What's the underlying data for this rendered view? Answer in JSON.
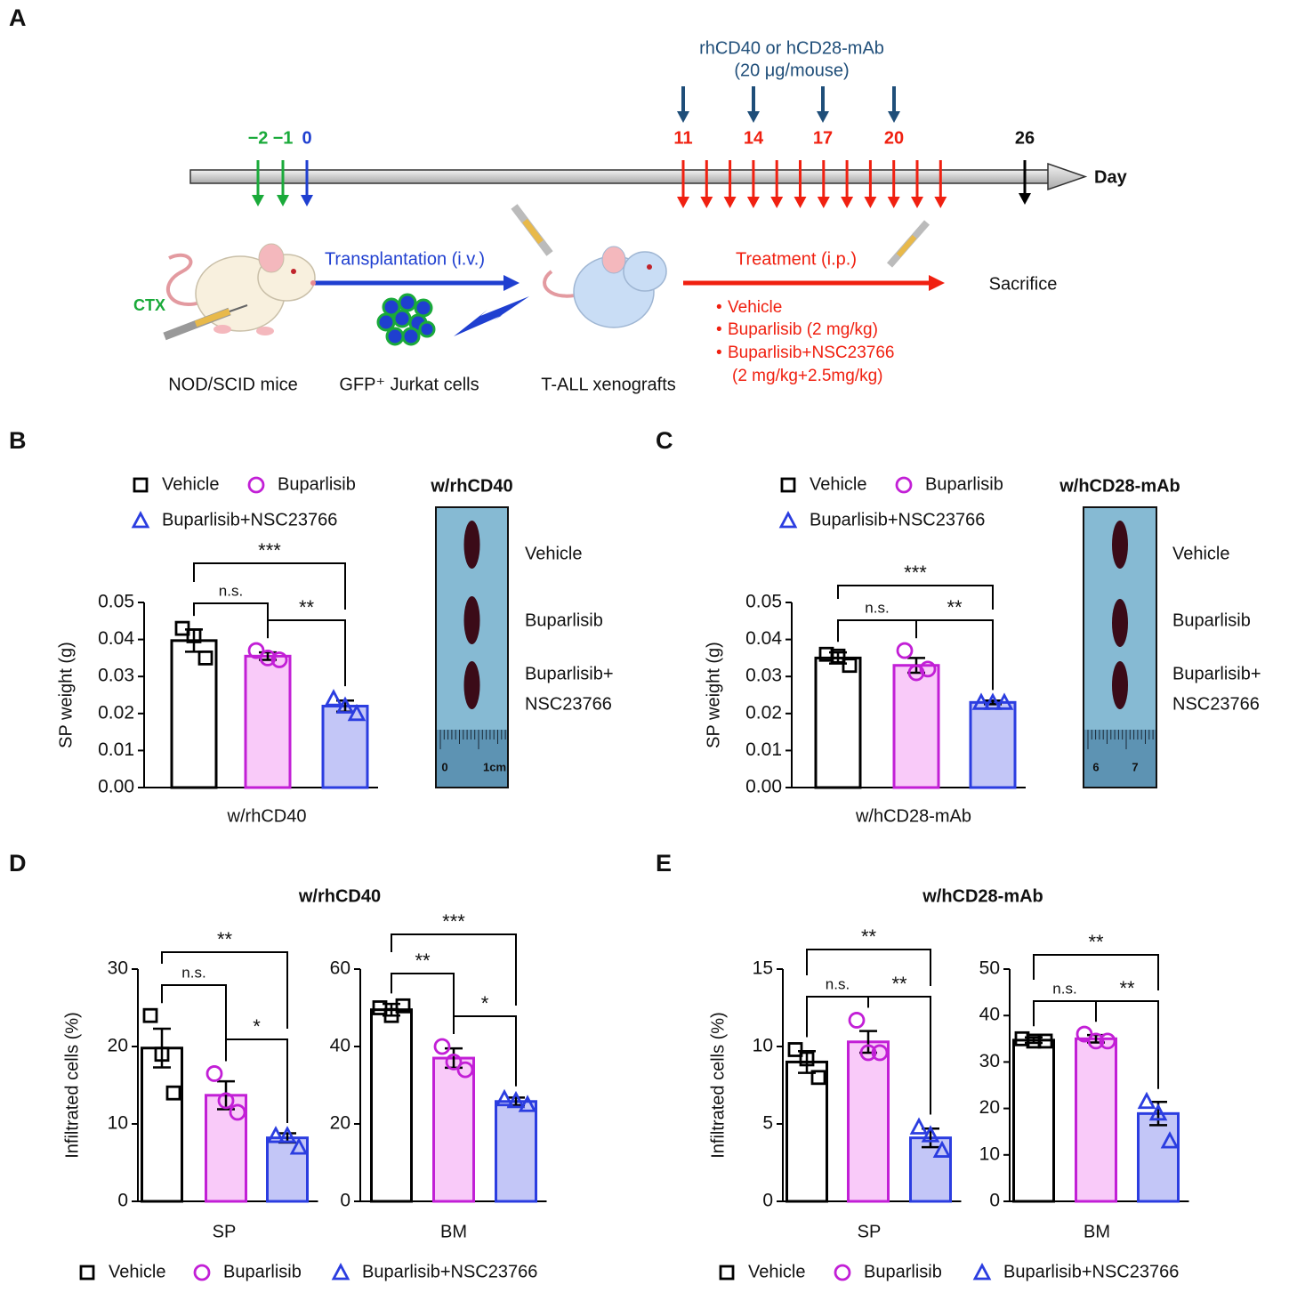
{
  "panel_labels": [
    "A",
    "B",
    "C",
    "D",
    "E"
  ],
  "timeline": {
    "dose_lines": [
      "rhCD40 or hCD28-mAb",
      "(20 μg/mouse)"
    ],
    "days": [
      "−2",
      "−1",
      "0",
      "11",
      "14",
      "17",
      "20",
      "26"
    ],
    "axis_label": "Day",
    "transplant": "Transplantation (i.v.)",
    "treatment": "Treatment (i.p.)",
    "sacrifice": "Sacrifice",
    "ctx": "CTX",
    "treatments": [
      [
        "Vehicle"
      ],
      [
        "Buparlisib (2 mg/kg)"
      ],
      [
        "Buparlisib+NSC23766",
        "(2 mg/kg+2.5mg/kg)"
      ]
    ],
    "captions": [
      "NOD/SCID mice",
      "GFP⁺ Jurkat cells",
      "T-ALL xenografts"
    ]
  },
  "chart_data": [
    {
      "type": "bar",
      "series": [
        {
          "name": "Vehicle",
          "color": "#000000",
          "fill": "#ffffff",
          "marker": "square"
        },
        {
          "name": "Buparlisib",
          "color": "#c21fd6",
          "fill": "#f9caf9",
          "marker": "circle"
        },
        {
          "name": "Buparlisib+NSC23766",
          "color": "#2b3de0",
          "fill": "#c3c6f7",
          "marker": "triangle"
        }
      ],
      "image": {
        "title": "w/rhCD40",
        "labels": [
          "Vehicle",
          "Buparlisib",
          "Buparlisib+",
          "NSC23766"
        ],
        "ruler": [
          "0",
          "1cm"
        ]
      },
      "plots": [
        {
          "ylabel": "SP weight (g)",
          "xlabel": "w/rhCD40",
          "ylim": [
            0,
            0.05
          ],
          "yticks": [
            {
              "value": 0,
              "label": "0.00"
            },
            {
              "value": 0.01,
              "label": "0.01"
            },
            {
              "value": 0.02,
              "label": "0.02"
            },
            {
              "value": 0.03,
              "label": "0.03"
            },
            {
              "value": 0.04,
              "label": "0.04"
            },
            {
              "value": 0.05,
              "label": "0.05"
            }
          ],
          "values": [
            0.0397,
            0.0355,
            0.022
          ],
          "errors": [
            0.003,
            0.001,
            0.0015
          ],
          "points": [
            [
              0.043,
              0.041,
              0.035
            ],
            [
              0.037,
              0.035,
              0.0345
            ],
            [
              0.024,
              0.022,
              0.02
            ]
          ],
          "significance": [
            "***",
            "n.s.",
            "**"
          ]
        }
      ]
    },
    {
      "type": "bar",
      "series": [
        {
          "name": "Vehicle",
          "color": "#000000",
          "fill": "#ffffff",
          "marker": "square"
        },
        {
          "name": "Buparlisib",
          "color": "#c21fd6",
          "fill": "#f9caf9",
          "marker": "circle"
        },
        {
          "name": "Buparlisib+NSC23766",
          "color": "#2b3de0",
          "fill": "#c3c6f7",
          "marker": "triangle"
        }
      ],
      "image": {
        "title": "w/hCD28-mAb",
        "labels": [
          "Vehicle",
          "Buparlisib",
          "Buparlisib+",
          "NSC23766"
        ],
        "ruler": [
          "6",
          "7"
        ]
      },
      "plots": [
        {
          "ylabel": "SP weight (g)",
          "xlabel": "w/hCD28-mAb",
          "ylim": [
            0,
            0.05
          ],
          "yticks": [
            {
              "value": 0,
              "label": "0.00"
            },
            {
              "value": 0.01,
              "label": "0.01"
            },
            {
              "value": 0.02,
              "label": "0.02"
            },
            {
              "value": 0.03,
              "label": "0.03"
            },
            {
              "value": 0.04,
              "label": "0.04"
            },
            {
              "value": 0.05,
              "label": "0.05"
            }
          ],
          "values": [
            0.035,
            0.033,
            0.023
          ],
          "errors": [
            0.0015,
            0.002,
            0.0005
          ],
          "points": [
            [
              0.036,
              0.0355,
              0.033
            ],
            [
              0.037,
              0.031,
              0.032
            ],
            [
              0.023,
              0.023,
              0.023
            ]
          ],
          "significance": [
            "***",
            "n.s.",
            "**"
          ]
        }
      ]
    },
    {
      "type": "bar",
      "title": "w/rhCD40",
      "series": [
        {
          "name": "Vehicle",
          "color": "#000000",
          "fill": "#ffffff",
          "marker": "square"
        },
        {
          "name": "Buparlisib",
          "color": "#c21fd6",
          "fill": "#f9caf9",
          "marker": "circle"
        },
        {
          "name": "Buparlisib+NSC23766",
          "color": "#2b3de0",
          "fill": "#c3c6f7",
          "marker": "triangle"
        }
      ],
      "plots": [
        {
          "ylabel": "Infiltrated cells (%)",
          "xlabel": "SP",
          "ylim": [
            0,
            30
          ],
          "yticks": [
            0,
            10,
            20,
            30
          ],
          "values": [
            19.8,
            13.7,
            8.2
          ],
          "errors": [
            2.5,
            1.8,
            0.6
          ],
          "points": [
            [
              24,
              19,
              14
            ],
            [
              16.5,
              13,
              11.5
            ],
            [
              8.5,
              8.5,
              7
            ]
          ],
          "significance": [
            "**",
            "n.s.",
            "*"
          ]
        },
        {
          "xlabel": "BM",
          "ylim": [
            0,
            60
          ],
          "yticks": [
            0,
            20,
            40,
            60
          ],
          "values": [
            49.5,
            37,
            25.8
          ],
          "errors": [
            1.5,
            2.5,
            1
          ],
          "points": [
            [
              50,
              48,
              50.5
            ],
            [
              40,
              36,
              34
            ],
            [
              26.5,
              26,
              25
            ]
          ],
          "significance": [
            "***",
            "**",
            "*"
          ]
        }
      ]
    },
    {
      "type": "bar",
      "title": "w/hCD28-mAb",
      "series": [
        {
          "name": "Vehicle",
          "color": "#000000",
          "fill": "#ffffff",
          "marker": "square"
        },
        {
          "name": "Buparlisib",
          "color": "#c21fd6",
          "fill": "#f9caf9",
          "marker": "circle"
        },
        {
          "name": "Buparlisib+NSC23766",
          "color": "#2b3de0",
          "fill": "#c3c6f7",
          "marker": "triangle"
        }
      ],
      "plots": [
        {
          "ylabel": "Infiltrated cells (%)",
          "xlabel": "SP",
          "ylim": [
            0,
            15
          ],
          "yticks": [
            0,
            5,
            10,
            15
          ],
          "values": [
            9,
            10.3,
            4.1
          ],
          "errors": [
            0.7,
            0.7,
            0.6
          ],
          "points": [
            [
              9.8,
              9.2,
              8
            ],
            [
              11.7,
              9.6,
              9.6
            ],
            [
              4.8,
              4.3,
              3.3
            ]
          ],
          "significance": [
            "**",
            "n.s.",
            "**"
          ]
        },
        {
          "xlabel": "BM",
          "ylim": [
            0,
            50
          ],
          "yticks": [
            0,
            10,
            20,
            30,
            40,
            50
          ],
          "values": [
            34.7,
            35,
            18.9
          ],
          "errors": [
            0.6,
            0.8,
            2.5
          ],
          "points": [
            [
              35,
              34.5,
              34.5
            ],
            [
              36,
              34.5,
              34.5
            ],
            [
              21.5,
              19,
              13
            ]
          ],
          "significance": [
            "**",
            "n.s.",
            "**"
          ]
        }
      ]
    }
  ]
}
